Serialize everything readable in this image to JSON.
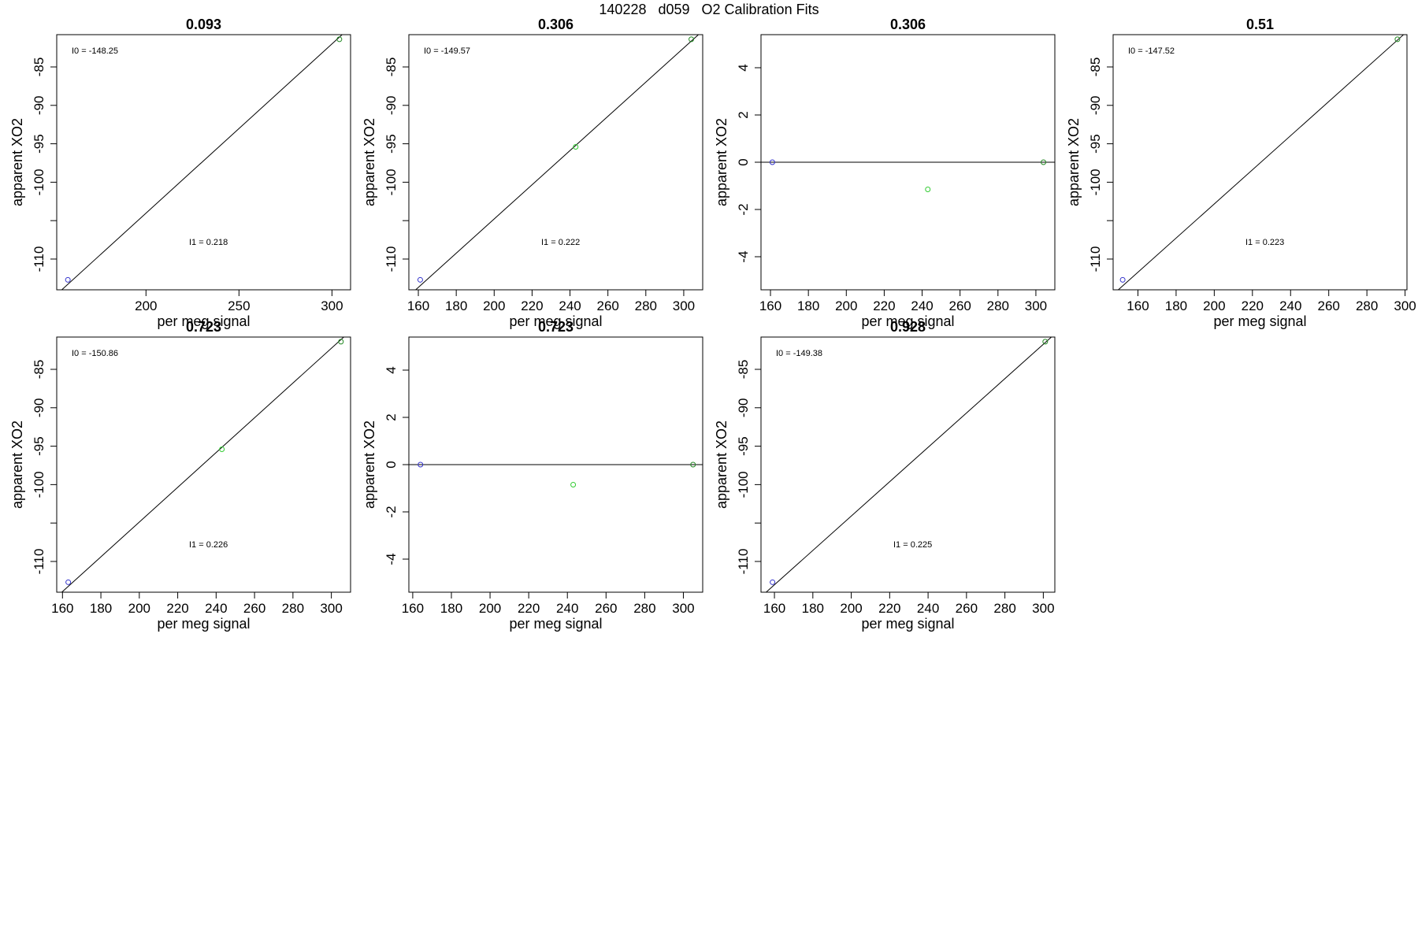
{
  "page": {
    "title": "140228   d059   O2 Calibration Fits"
  },
  "colors": {
    "low_point": "#3333cc",
    "mid_point": "#33cc33",
    "high_point": "#228822",
    "line": "#000000"
  },
  "chart_data": [
    {
      "type": "scatter",
      "title": "0.093",
      "xlabel": "per meg signal",
      "ylabel": "apparent XO2",
      "xlim": [
        152,
        310
      ],
      "ylim": [
        -114,
        -80.8
      ],
      "xticks": [
        200,
        250,
        300
      ],
      "yticks": [
        -110,
        -100,
        -95,
        -90,
        -85
      ],
      "yminor": [
        -105
      ],
      "fit_line": {
        "x1": 152,
        "y1": -114.6,
        "x2": 310,
        "y2": -79.8
      },
      "points": [
        {
          "x": 158,
          "y": -112.7,
          "role": "low"
        },
        {
          "x": 304,
          "y": -81.4,
          "role": "high"
        }
      ],
      "annotations": [
        {
          "label": "I0 =",
          "value": "-148.25",
          "pos": "top-left"
        },
        {
          "label": "I1 =",
          "value": "0.218",
          "pos": "middle"
        }
      ]
    },
    {
      "type": "scatter",
      "title": "0.306",
      "xlabel": "per meg signal",
      "ylabel": "apparent XO2",
      "xlim": [
        155,
        310
      ],
      "ylim": [
        -114,
        -80.8
      ],
      "xticks": [
        160,
        180,
        200,
        220,
        240,
        260,
        280,
        300
      ],
      "yticks": [
        -110,
        -100,
        -95,
        -90,
        -85
      ],
      "yminor": [
        -105
      ],
      "fit_line": {
        "x1": 155,
        "y1": -114.8,
        "x2": 310,
        "y2": -80.3
      },
      "points": [
        {
          "x": 161,
          "y": -112.7,
          "role": "low"
        },
        {
          "x": 243,
          "y": -95.4,
          "role": "mid"
        },
        {
          "x": 304,
          "y": -81.4,
          "role": "high"
        }
      ],
      "annotations": [
        {
          "label": "I0 =",
          "value": "-149.57",
          "pos": "top-left"
        },
        {
          "label": "I1 =",
          "value": "0.222",
          "pos": "middle"
        }
      ]
    },
    {
      "type": "scatter",
      "title": "0.306",
      "xlabel": "per meg signal",
      "ylabel": "apparent XO2",
      "xlim": [
        155,
        310
      ],
      "ylim": [
        -5.4,
        5.4
      ],
      "xticks": [
        160,
        180,
        200,
        220,
        240,
        260,
        280,
        300
      ],
      "yticks": [
        -4,
        -2,
        0,
        2,
        4
      ],
      "yminor": [],
      "fit_line": {
        "x1": 155,
        "y1": 0,
        "x2": 310,
        "y2": 0
      },
      "points": [
        {
          "x": 161,
          "y": 0,
          "role": "low"
        },
        {
          "x": 243,
          "y": -1.15,
          "role": "mid"
        },
        {
          "x": 304,
          "y": 0,
          "role": "high"
        }
      ],
      "annotations": []
    },
    {
      "type": "scatter",
      "title": "0.51",
      "xlabel": "per meg signal",
      "ylabel": "apparent XO2",
      "xlim": [
        147,
        301
      ],
      "ylim": [
        -114,
        -80.8
      ],
      "xticks": [
        160,
        180,
        200,
        220,
        240,
        260,
        280,
        300
      ],
      "yticks": [
        -110,
        -100,
        -95,
        -90,
        -85
      ],
      "yminor": [
        -105
      ],
      "fit_line": {
        "x1": 147,
        "y1": -114.6,
        "x2": 301,
        "y2": -80.4
      },
      "points": [
        {
          "x": 152,
          "y": -112.7,
          "role": "low"
        },
        {
          "x": 296,
          "y": -81.4,
          "role": "high"
        }
      ],
      "annotations": [
        {
          "label": "I0 =",
          "value": "-147.52",
          "pos": "top-left"
        },
        {
          "label": "I1 =",
          "value": "0.223",
          "pos": "middle"
        }
      ]
    },
    {
      "type": "scatter",
      "title": "0.723",
      "xlabel": "per meg signal",
      "ylabel": "apparent XO2",
      "xlim": [
        157,
        310
      ],
      "ylim": [
        -114,
        -80.8
      ],
      "xticks": [
        160,
        180,
        200,
        220,
        240,
        260,
        280,
        300
      ],
      "yticks": [
        -110,
        -100,
        -95,
        -90,
        -85
      ],
      "yminor": [
        -105
      ],
      "fit_line": {
        "x1": 157,
        "y1": -114.6,
        "x2": 310,
        "y2": -80.0
      },
      "points": [
        {
          "x": 163,
          "y": -112.7,
          "role": "low"
        },
        {
          "x": 243,
          "y": -95.4,
          "role": "mid"
        },
        {
          "x": 305,
          "y": -81.4,
          "role": "high"
        }
      ],
      "annotations": [
        {
          "label": "I0 =",
          "value": "-150.86",
          "pos": "top-left"
        },
        {
          "label": "I1 =",
          "value": "0.226",
          "pos": "middle"
        }
      ]
    },
    {
      "type": "scatter",
      "title": "0.723",
      "xlabel": "per meg signal",
      "ylabel": "apparent XO2",
      "xlim": [
        158,
        310
      ],
      "ylim": [
        -5.4,
        5.4
      ],
      "xticks": [
        160,
        180,
        200,
        220,
        240,
        260,
        280,
        300
      ],
      "yticks": [
        -4,
        -2,
        0,
        2,
        4
      ],
      "yminor": [],
      "fit_line": {
        "x1": 158,
        "y1": 0,
        "x2": 310,
        "y2": 0
      },
      "points": [
        {
          "x": 164,
          "y": 0,
          "role": "low"
        },
        {
          "x": 243,
          "y": -0.85,
          "role": "mid"
        },
        {
          "x": 305,
          "y": 0,
          "role": "high"
        }
      ],
      "annotations": []
    },
    {
      "type": "scatter",
      "title": "0.928",
      "xlabel": "per meg signal",
      "ylabel": "apparent XO2",
      "xlim": [
        153,
        306
      ],
      "ylim": [
        -114,
        -80.8
      ],
      "xticks": [
        160,
        180,
        200,
        220,
        240,
        260,
        280,
        300
      ],
      "yticks": [
        -110,
        -100,
        -95,
        -90,
        -85
      ],
      "yminor": [
        -105
      ],
      "fit_line": {
        "x1": 153,
        "y1": -114.6,
        "x2": 306,
        "y2": -80.4
      },
      "points": [
        {
          "x": 159,
          "y": -112.7,
          "role": "low"
        },
        {
          "x": 301,
          "y": -81.4,
          "role": "high"
        }
      ],
      "annotations": [
        {
          "label": "I0 =",
          "value": "-149.38",
          "pos": "top-left"
        },
        {
          "label": "I1 =",
          "value": "0.225",
          "pos": "middle"
        }
      ]
    }
  ]
}
